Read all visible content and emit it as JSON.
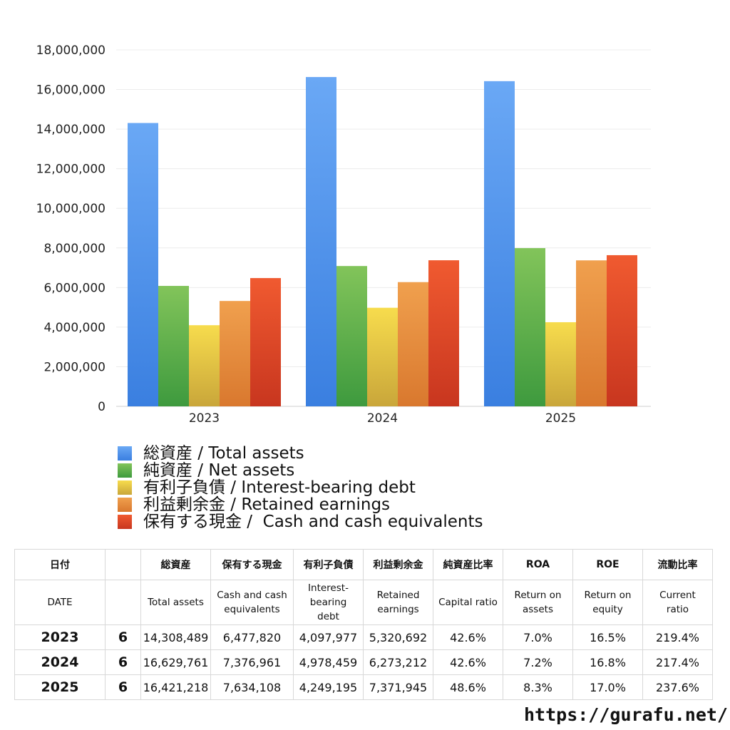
{
  "chart_data": {
    "type": "bar",
    "categories": [
      "2023",
      "2024",
      "2025"
    ],
    "series": [
      {
        "name": "総資産 / Total assets",
        "values": [
          14308489,
          16629761,
          16421218
        ],
        "color": "#3a7fe0",
        "colorLight": "#6aa8f5"
      },
      {
        "name": "純資産 / Net assets",
        "values": [
          6082000,
          7086000,
          7990000
        ],
        "color": "#3e9a3e",
        "colorLight": "#82c45a"
      },
      {
        "name": "有利子負債 / Interest-bearing debt",
        "values": [
          4097977,
          4978459,
          4249195
        ],
        "color": "#c9a63a",
        "colorLight": "#f7dc4d"
      },
      {
        "name": "利益剰余金 / Retained earnings",
        "values": [
          5320692,
          6273212,
          7371945
        ],
        "color": "#d9782e",
        "colorLight": "#f0a04e"
      },
      {
        "name": "保有する現金 /  Cash and cash equivalents",
        "values": [
          6477820,
          7376961,
          7634108
        ],
        "color": "#c8361f",
        "colorLight": "#f05a30"
      }
    ],
    "ylim": [
      0,
      18000000
    ],
    "yticks": [
      "0",
      "2,000,000",
      "4,000,000",
      "6,000,000",
      "8,000,000",
      "10,000,000",
      "12,000,000",
      "14,000,000",
      "16,000,000",
      "18,000,000"
    ],
    "grid": true,
    "legend": "bottom"
  },
  "table": {
    "headers_ja": [
      "日付",
      "",
      "総資産",
      "保有する現金",
      "有利子負債",
      "利益剰余金",
      "純資産比率",
      "ROA",
      "ROE",
      "流動比率"
    ],
    "headers_en": [
      "DATE",
      "",
      "Total assets",
      "Cash and cash\nequivalents",
      "Interest-\nbearing\ndebt",
      "Retained\nearnings",
      "Capital ratio",
      "Return on\nassets",
      "Return on\nequity",
      "Current\nratio"
    ],
    "rows": [
      [
        "2023",
        "6",
        "14,308,489",
        "6,477,820",
        "4,097,977",
        "5,320,692",
        "42.6%",
        "7.0%",
        "16.5%",
        "219.4%"
      ],
      [
        "2024",
        "6",
        "16,629,761",
        "7,376,961",
        "4,978,459",
        "6,273,212",
        "42.6%",
        "7.2%",
        "16.8%",
        "217.4%"
      ],
      [
        "2025",
        "6",
        "16,421,218",
        "7,634,108",
        "4,249,195",
        "7,371,945",
        "48.6%",
        "8.3%",
        "17.0%",
        "237.6%"
      ]
    ]
  },
  "footer": {
    "url": "https://gurafu.net/"
  }
}
